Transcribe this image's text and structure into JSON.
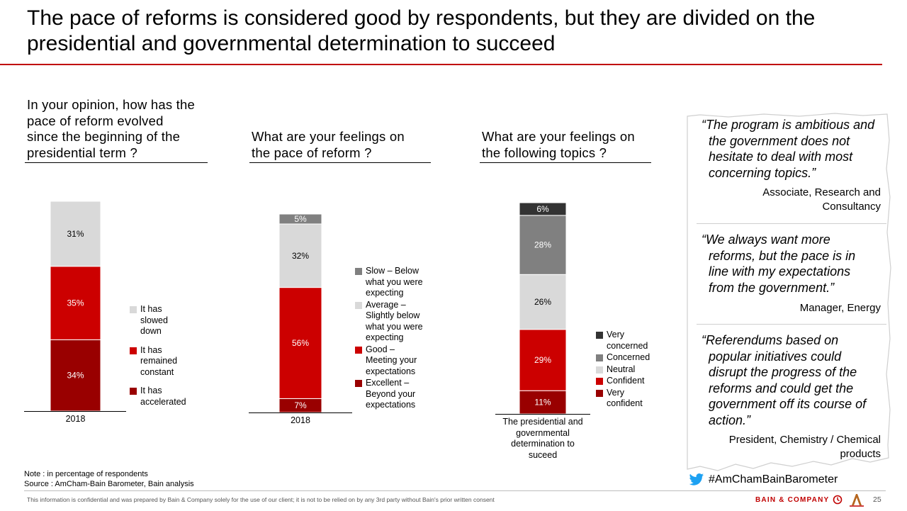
{
  "page": {
    "title": "The pace of reforms is considered good by respondents, but they are divided on the presidential and governmental determination to succeed",
    "note": "Note : in percentage of respondents",
    "source": "Source : AmCham-Bain Barometer, Bain analysis",
    "confidential": "This information is confidential and was prepared by Bain & Company solely for the use of our client; it is not to be relied on by any 3rd party without Bain's prior written consent",
    "logo_text": "BAIN & COMPANY",
    "page_number": "25",
    "hashtag": "#AmChamBainBarometer"
  },
  "colors": {
    "accent": "#c00000",
    "dark_red": "#990000",
    "red": "#cc0000",
    "light_gray": "#d9d9d9",
    "mid_gray": "#808080",
    "dark_gray": "#333333"
  },
  "quotes": [
    {
      "text_first": "“The program is ambitious and",
      "text_rest": [
        "the government does not",
        "hesitate to deal with most",
        "concerning topics.”"
      ],
      "attribution": [
        "Associate, Research and",
        "Consultancy"
      ]
    },
    {
      "text_first": "“We always want more",
      "text_rest": [
        "reforms, but the pace is in",
        "line with my expectations",
        "from the government.”"
      ],
      "attribution": [
        "Manager, Energy"
      ]
    },
    {
      "text_first": "“Referendums based on",
      "text_rest": [
        "popular initiatives could",
        "disrupt the progress of the",
        "reforms and could get the",
        "government off its course of",
        "action.”"
      ],
      "attribution": [
        "President, Chemistry / Chemical",
        "products"
      ]
    }
  ],
  "chart_data": [
    {
      "type": "bar",
      "stacked": true,
      "title": "In your opinion, how has the pace of reform evolved since the beginning of the presidential term ?",
      "title_lines": [
        "In your opinion, how has the",
        "pace of reform evolved",
        "since the beginning of the",
        "presidential term ?"
      ],
      "categories": [
        "2018"
      ],
      "category_lines": [
        "2018"
      ],
      "unit": "%",
      "series": [
        {
          "name": "It has accelerated",
          "name_lines": [
            "It has",
            "accelerated"
          ],
          "values": [
            34
          ],
          "color": "#990000"
        },
        {
          "name": "It has remained constant",
          "name_lines": [
            "It has",
            "remained",
            "constant"
          ],
          "values": [
            35
          ],
          "color": "#cc0000"
        },
        {
          "name": "It has slowed down",
          "name_lines": [
            "It has",
            "slowed",
            "down"
          ],
          "values": [
            31
          ],
          "color": "#d9d9d9"
        }
      ]
    },
    {
      "type": "bar",
      "stacked": true,
      "title": "What are your feelings on the pace of reform ?",
      "title_lines": [
        "What are your feelings on",
        "the pace of reform ?"
      ],
      "categories": [
        "2018"
      ],
      "category_lines": [
        "2018"
      ],
      "unit": "%",
      "series": [
        {
          "name": "Excellent – Beyond your expectations",
          "name_lines": [
            "Excellent –",
            "Beyond your",
            "expectations"
          ],
          "values": [
            7
          ],
          "color": "#990000"
        },
        {
          "name": "Good – Meeting your expectations",
          "name_lines": [
            "Good –",
            "Meeting your",
            "expectations"
          ],
          "values": [
            56
          ],
          "color": "#cc0000"
        },
        {
          "name": "Average – Slightly below what you were expecting",
          "name_lines": [
            "Average –",
            "Slightly below",
            "what you were",
            "expecting"
          ],
          "values": [
            32
          ],
          "color": "#d9d9d9"
        },
        {
          "name": "Slow – Below what you were expecting",
          "name_lines": [
            "Slow – Below",
            "what you were",
            "expecting"
          ],
          "values": [
            5
          ],
          "color": "#808080"
        }
      ]
    },
    {
      "type": "bar",
      "stacked": true,
      "title": "What are your feelings on the following topics ?",
      "title_lines": [
        "What are your feelings on",
        "the following topics ?"
      ],
      "categories": [
        "The presidential and governmental determination to suceed"
      ],
      "category_lines": [
        "The presidential and",
        "governmental",
        "determination to",
        "suceed"
      ],
      "unit": "%",
      "series": [
        {
          "name": "Very confident",
          "name_lines": [
            "Very",
            "confident"
          ],
          "values": [
            11
          ],
          "color": "#990000"
        },
        {
          "name": "Confident",
          "name_lines": [
            "Confident"
          ],
          "values": [
            29
          ],
          "color": "#cc0000"
        },
        {
          "name": "Neutral",
          "name_lines": [
            "Neutral"
          ],
          "values": [
            26
          ],
          "color": "#d9d9d9"
        },
        {
          "name": "Concerned",
          "name_lines": [
            "Concerned"
          ],
          "values": [
            28
          ],
          "color": "#808080"
        },
        {
          "name": "Very concerned",
          "name_lines": [
            "Very",
            "concerned"
          ],
          "values": [
            6
          ],
          "color": "#333333"
        }
      ]
    }
  ]
}
